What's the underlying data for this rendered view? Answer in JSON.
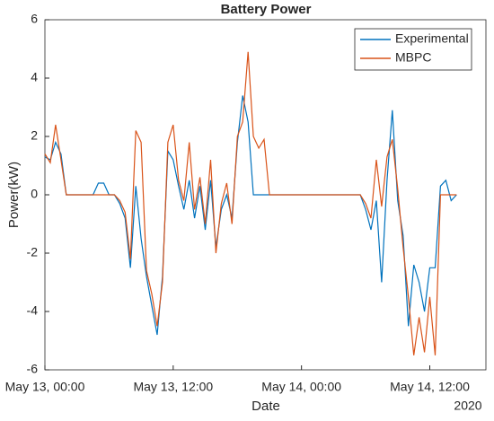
{
  "chart_data": {
    "type": "line",
    "title": "Battery Power",
    "xlabel": "Date",
    "ylabel": "Power(kW)",
    "annotation": "2020",
    "x": [
      "2020-05-13T00:00",
      "2020-05-13T00:30",
      "2020-05-13T01:00",
      "2020-05-13T01:30",
      "2020-05-13T02:00",
      "2020-05-13T02:30",
      "2020-05-13T03:00",
      "2020-05-13T03:30",
      "2020-05-13T04:00",
      "2020-05-13T04:30",
      "2020-05-13T05:00",
      "2020-05-13T05:30",
      "2020-05-13T06:00",
      "2020-05-13T06:30",
      "2020-05-13T07:00",
      "2020-05-13T07:30",
      "2020-05-13T08:00",
      "2020-05-13T08:30",
      "2020-05-13T09:00",
      "2020-05-13T09:30",
      "2020-05-13T10:00",
      "2020-05-13T10:30",
      "2020-05-13T11:00",
      "2020-05-13T11:30",
      "2020-05-13T12:00",
      "2020-05-13T12:30",
      "2020-05-13T13:00",
      "2020-05-13T13:30",
      "2020-05-13T14:00",
      "2020-05-13T14:30",
      "2020-05-13T15:00",
      "2020-05-13T15:30",
      "2020-05-13T16:00",
      "2020-05-13T16:30",
      "2020-05-13T17:00",
      "2020-05-13T17:30",
      "2020-05-13T18:00",
      "2020-05-13T18:30",
      "2020-05-13T19:00",
      "2020-05-13T19:30",
      "2020-05-13T20:00",
      "2020-05-13T20:30",
      "2020-05-13T21:00",
      "2020-05-13T21:30",
      "2020-05-13T22:00",
      "2020-05-13T22:30",
      "2020-05-13T23:00",
      "2020-05-13T23:30",
      "2020-05-14T00:00",
      "2020-05-14T00:30",
      "2020-05-14T01:00",
      "2020-05-14T01:30",
      "2020-05-14T02:00",
      "2020-05-14T02:30",
      "2020-05-14T03:00",
      "2020-05-14T03:30",
      "2020-05-14T04:00",
      "2020-05-14T04:30",
      "2020-05-14T05:00",
      "2020-05-14T05:30",
      "2020-05-14T06:00",
      "2020-05-14T06:30",
      "2020-05-14T07:00",
      "2020-05-14T07:30",
      "2020-05-14T08:00",
      "2020-05-14T08:30",
      "2020-05-14T09:00",
      "2020-05-14T09:30",
      "2020-05-14T10:00",
      "2020-05-14T10:30",
      "2020-05-14T11:00",
      "2020-05-14T11:30",
      "2020-05-14T12:00",
      "2020-05-14T12:30",
      "2020-05-14T13:00",
      "2020-05-14T13:30",
      "2020-05-14T14:00",
      "2020-05-14T14:30"
    ],
    "series": [
      {
        "name": "Experimental",
        "color": "#0072bd",
        "values": [
          1.3,
          1.2,
          1.8,
          1.4,
          0,
          0,
          0,
          0,
          0,
          0,
          0.4,
          0.4,
          0,
          0,
          -0.3,
          -0.8,
          -2.5,
          0.3,
          -1.5,
          -2.8,
          -3.8,
          -4.8,
          -2.8,
          1.5,
          1.2,
          0.3,
          -0.5,
          0.5,
          -0.8,
          0.3,
          -1.2,
          0.5,
          -1.8,
          -0.5,
          0,
          -0.8,
          1.8,
          3.4,
          2.5,
          0,
          0,
          0,
          0,
          0,
          0,
          0,
          0,
          0,
          0,
          0,
          0,
          0,
          0,
          0,
          0,
          0,
          0,
          0,
          0,
          0,
          -0.5,
          -1.2,
          -0.2,
          -3,
          0.5,
          2.9,
          -0.2,
          -1.4,
          -4.5,
          -2.4,
          -3,
          -4,
          -2.5,
          -2.5,
          0.3,
          0.5,
          -0.2,
          0
        ]
      },
      {
        "name": "MBPC",
        "color": "#d95319",
        "values": [
          1.4,
          1.1,
          2.4,
          1.2,
          0,
          0,
          0,
          0,
          0,
          0,
          0,
          0,
          0,
          0,
          -0.2,
          -0.6,
          -2.2,
          2.2,
          1.8,
          -2.6,
          -3.4,
          -4.5,
          -3,
          1.8,
          2.4,
          0.5,
          -0.2,
          1.8,
          -0.5,
          0.6,
          -1,
          1.2,
          -2,
          -0.3,
          0.4,
          -1,
          2,
          2.5,
          4.9,
          2,
          1.6,
          1.9,
          0,
          0,
          0,
          0,
          0,
          0,
          0,
          0,
          0,
          0,
          0,
          0,
          0,
          0,
          0,
          0,
          0,
          0,
          -0.3,
          -0.8,
          1.2,
          -0.4,
          1.3,
          1.9,
          0.2,
          -1.8,
          -3.5,
          -5.5,
          -4.2,
          -5.4,
          -3.5,
          -5.5,
          0,
          0,
          0,
          0
        ]
      }
    ],
    "xlim": [
      "2020-05-13T00:00",
      "2020-05-14T17:15"
    ],
    "xticks": [
      {
        "value": "2020-05-13T00:00",
        "label": "May 13, 00:00"
      },
      {
        "value": "2020-05-13T12:00",
        "label": "May 13, 12:00"
      },
      {
        "value": "2020-05-14T00:00",
        "label": "May 14, 00:00"
      },
      {
        "value": "2020-05-14T12:00",
        "label": "May 14, 12:00"
      }
    ],
    "ylim": [
      -6,
      6
    ],
    "yticks": [
      -6,
      -4,
      -2,
      0,
      2,
      4,
      6
    ],
    "grid": false,
    "legend": "northeast"
  }
}
